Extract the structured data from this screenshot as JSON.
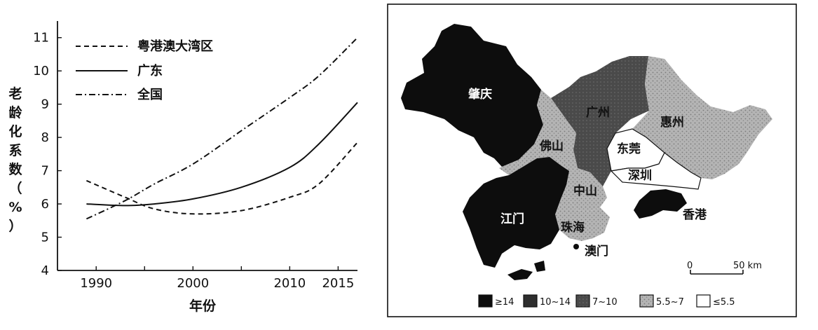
{
  "chart_data": {
    "type": "line",
    "xlabel": "年份",
    "ylabel": "老龄化系数（%）",
    "xlim": [
      1986,
      2017
    ],
    "ylim": [
      4,
      11.5
    ],
    "x_ticks": [
      "1990",
      "2000",
      "2010",
      "2015"
    ],
    "y_ticks": [
      "4",
      "5",
      "6",
      "7",
      "8",
      "9",
      "10",
      "11"
    ],
    "grid": false,
    "legend_position": "top-left",
    "series": [
      {
        "name": "粤港澳大湾区",
        "style": "dashed",
        "x": [
          1989,
          1993,
          1996,
          2000,
          2005,
          2010,
          2013,
          2017
        ],
        "y": [
          6.7,
          6.2,
          5.85,
          5.7,
          5.8,
          6.2,
          6.6,
          7.85
        ]
      },
      {
        "name": "广东",
        "style": "solid",
        "x": [
          1989,
          1993,
          1996,
          2000,
          2005,
          2010,
          2013,
          2017
        ],
        "y": [
          6.0,
          5.95,
          6.0,
          6.15,
          6.5,
          7.1,
          7.8,
          9.05
        ]
      },
      {
        "name": "全国",
        "style": "dashdot",
        "x": [
          1989,
          1993,
          1996,
          2000,
          2005,
          2010,
          2013,
          2017
        ],
        "y": [
          5.55,
          6.1,
          6.6,
          7.2,
          8.2,
          9.2,
          9.85,
          11.0
        ]
      }
    ]
  },
  "map": {
    "cities": {
      "zhaoqing": "肇庆",
      "guangzhou": "广州",
      "huizhou": "惠州",
      "foshan": "佛山",
      "dongguan": "东莞",
      "shenzhen": "深圳",
      "zhongshan": "中山",
      "jiangmen": "江门",
      "zhuhai": "珠海",
      "macau": "澳门",
      "hongkong": "香港"
    },
    "scale_start": "0",
    "scale_end": "50 km",
    "legend": [
      {
        "label": "≥14",
        "color": "#0d0d0d"
      },
      {
        "label": "10~14",
        "color": "#2e2e2e"
      },
      {
        "label": "7~10",
        "color": "#4a4a4a"
      },
      {
        "label": "5.5~7",
        "color": "#b4b4b4"
      },
      {
        "label": "≤5.5",
        "color": "#ffffff"
      }
    ]
  }
}
